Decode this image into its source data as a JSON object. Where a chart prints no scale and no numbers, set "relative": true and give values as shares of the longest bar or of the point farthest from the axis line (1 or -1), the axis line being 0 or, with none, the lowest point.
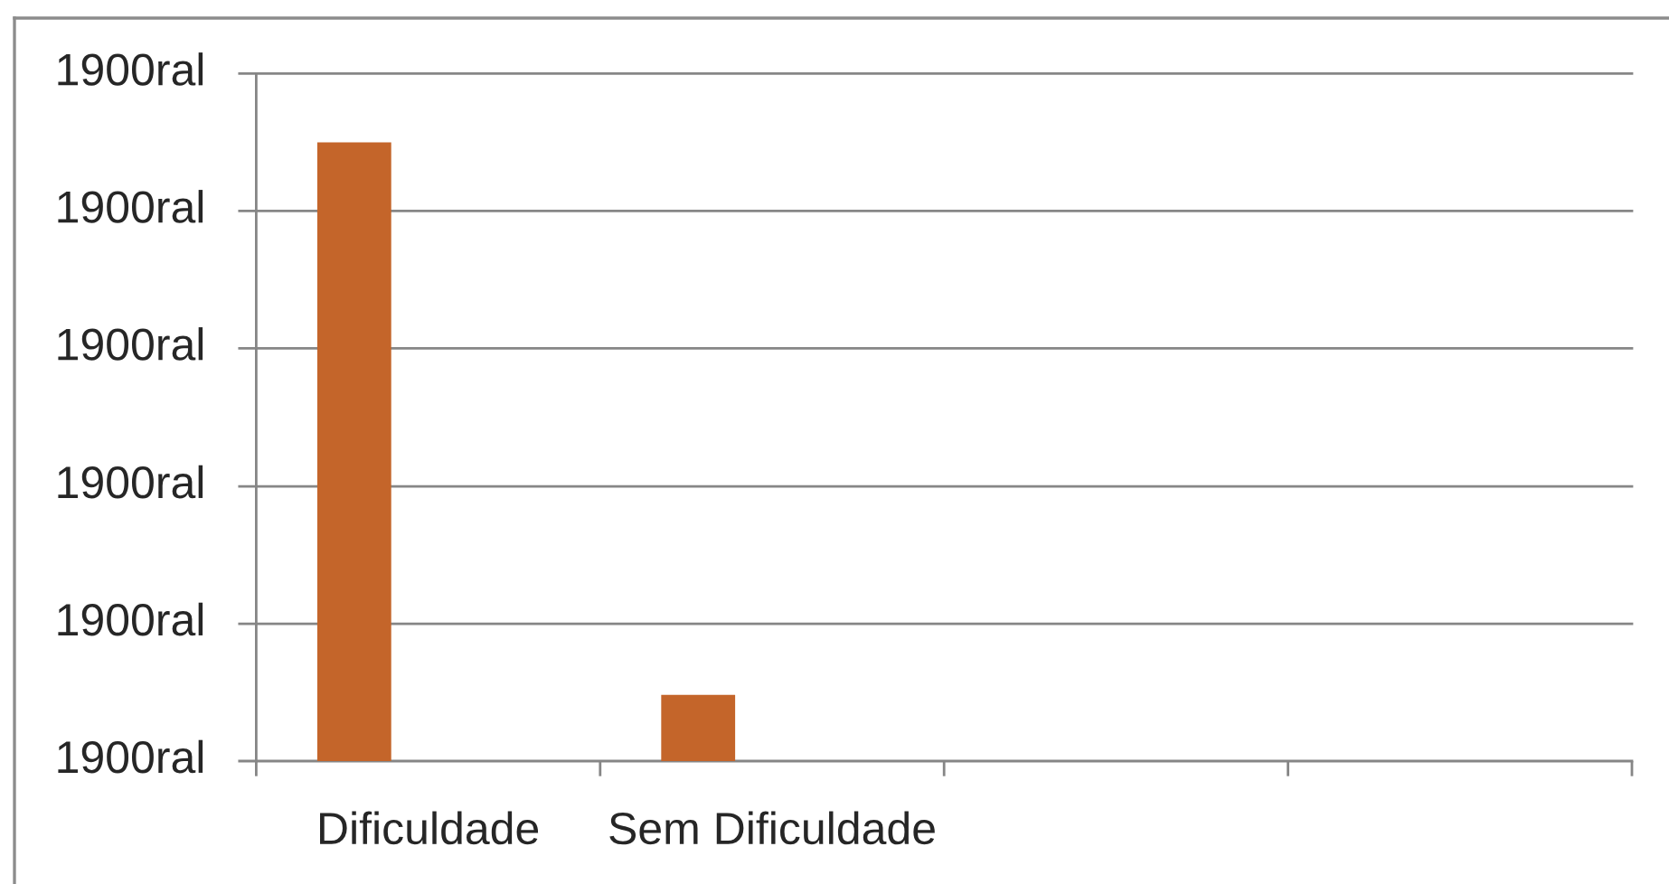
{
  "chart_data": {
    "type": "bar",
    "categories": [
      "Dificuldade",
      "Sem Dificuldade",
      null,
      null
    ],
    "values": [
      1,
      0.107,
      null,
      null
    ],
    "color": "#c4652a",
    "relative": true,
    "ref_lines": [
      {
        "axis": "y",
        "value": 0.222,
        "label": "1900ral"
      },
      {
        "axis": "y",
        "value": 0.444,
        "label": "1900ral"
      },
      {
        "axis": "y",
        "value": 0.667,
        "label": "1900ral"
      },
      {
        "axis": "y",
        "value": 0.889,
        "label": "1900ral"
      },
      {
        "axis": "y",
        "value": 1.111,
        "label": "1900ral"
      }
    ],
    "annotations": [
      "1900ral"
    ]
  }
}
